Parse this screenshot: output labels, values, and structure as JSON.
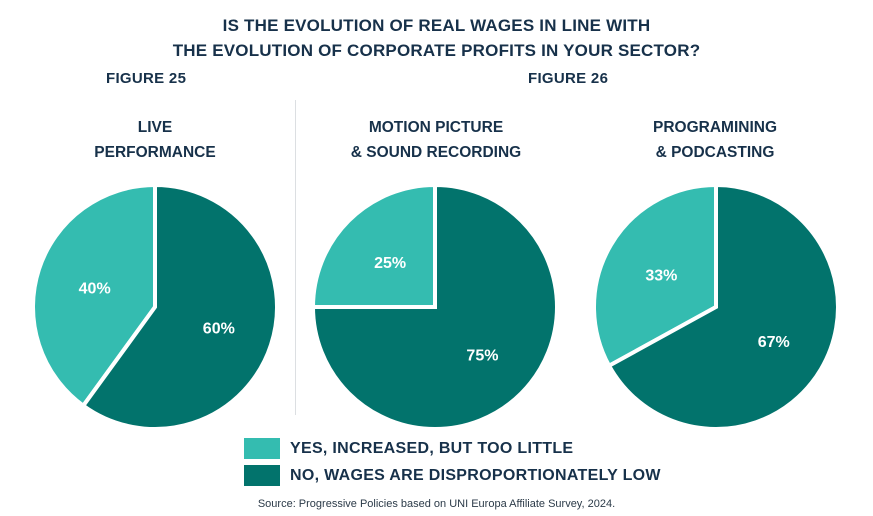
{
  "title_lines": [
    "IS THE EVOLUTION OF REAL WAGES IN LINE WITH",
    "THE EVOLUTION OF CORPORATE PROFITS IN YOUR SECTOR?"
  ],
  "figures": [
    "FIGURE 25",
    "FIGURE 26"
  ],
  "source": "Source: Progressive Policies based on UNI Europa Affiliate Survey, 2024.",
  "colors": {
    "yes": "#34bcb0",
    "no": "#02736c"
  },
  "chart_data": [
    {
      "type": "pie",
      "title_lines": [
        "LIVE",
        "PERFORMANCE"
      ],
      "slices": [
        {
          "name": "YES, INCREASED, BUT TOO LITTLE",
          "value": 40,
          "label": "40%"
        },
        {
          "name": "NO, WAGES ARE DISPROPORTIONATELY LOW",
          "value": 60,
          "label": "60%"
        }
      ]
    },
    {
      "type": "pie",
      "title_lines": [
        "MOTION PICTURE",
        "& SOUND RECORDING"
      ],
      "slices": [
        {
          "name": "YES, INCREASED, BUT TOO LITTLE",
          "value": 25,
          "label": "25%"
        },
        {
          "name": "NO, WAGES ARE DISPROPORTIONATELY LOW",
          "value": 75,
          "label": "75%"
        }
      ]
    },
    {
      "type": "pie",
      "title_lines": [
        "PROGRAMINING",
        "& PODCASTING"
      ],
      "slices": [
        {
          "name": "YES, INCREASED, BUT TOO LITTLE",
          "value": 33,
          "label": "33%"
        },
        {
          "name": "NO, WAGES ARE DISPROPORTIONATELY LOW",
          "value": 67,
          "label": "67%"
        }
      ]
    }
  ],
  "legend": [
    {
      "label": "YES, INCREASED, BUT TOO LITTLE",
      "color": "#34bcb0"
    },
    {
      "label": "NO, WAGES ARE DISPROPORTIONATELY LOW",
      "color": "#02736c"
    }
  ]
}
